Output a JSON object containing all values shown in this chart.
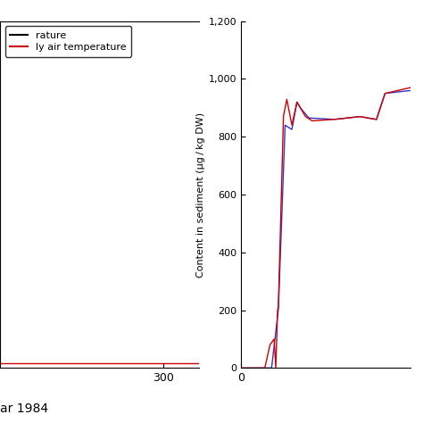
{
  "left_panel": {
    "xlim": [
      0,
      365
    ],
    "ylim": [
      0,
      35
    ],
    "xtick": 300,
    "flat_line_y": 0.5,
    "line_color_black": "#000000",
    "line_color_red": "#cc0000",
    "legend_label1": "rature",
    "legend_label2": "ly air temperature"
  },
  "right_panel": {
    "ylabel": "Content in sediment (μg / kg DW)",
    "yticks": [
      0,
      200,
      400,
      600,
      800,
      1000,
      1200
    ],
    "ylim": [
      0,
      1200
    ],
    "xlim": [
      0,
      100
    ],
    "xtick": 0,
    "blue_color": "#3333cc",
    "red_color": "#cc0000"
  },
  "bottom_label": "ar 1984",
  "background": "#ffffff"
}
